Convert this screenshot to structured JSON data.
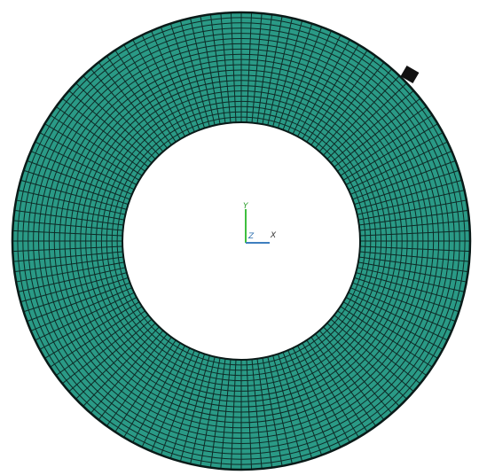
{
  "axis_triad": {
    "y_label": "Y",
    "z_label": "Z",
    "x_label": "X"
  }
}
